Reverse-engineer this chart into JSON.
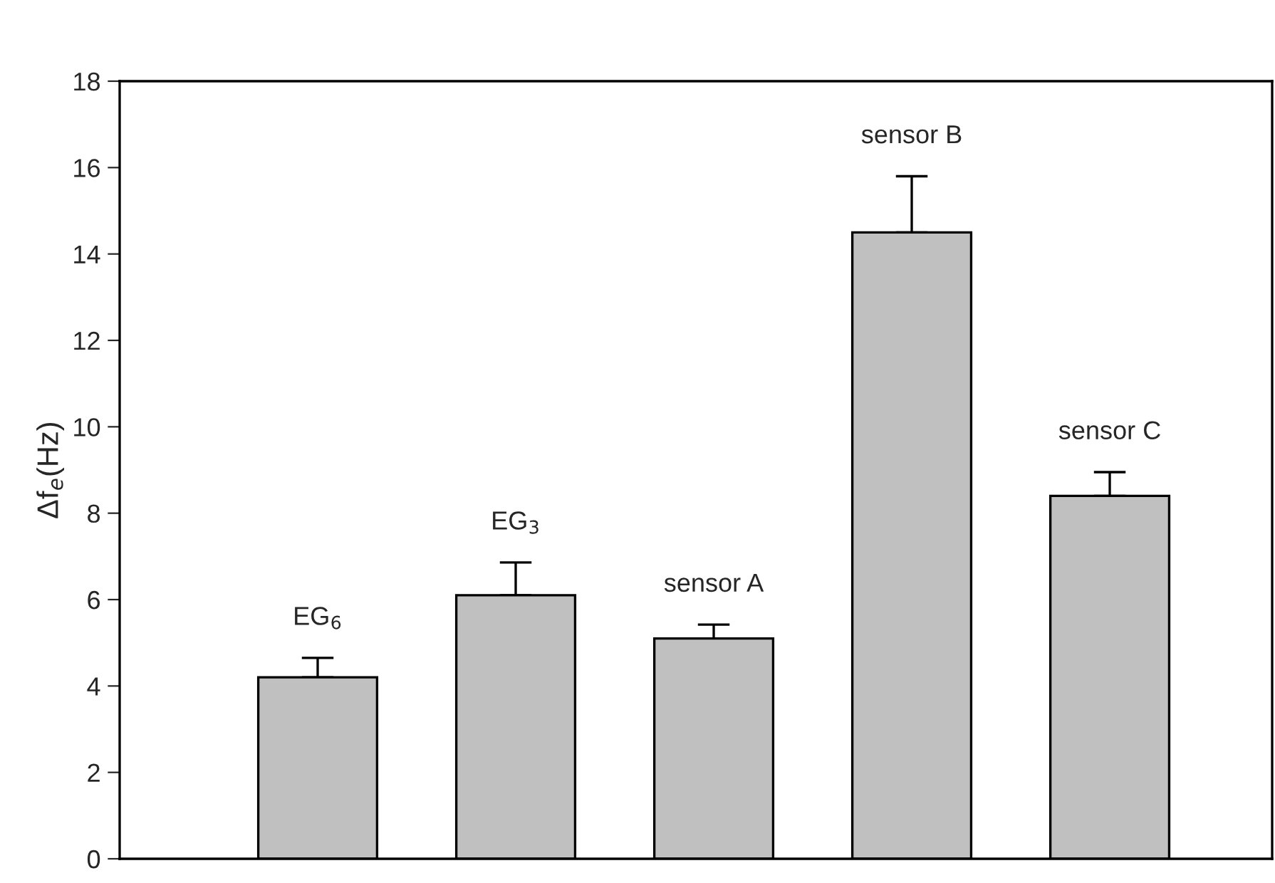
{
  "chart_data": {
    "type": "bar",
    "ylabel": "Δf$_{e}$(Hz)",
    "categories": [
      "EG$_{6}$",
      "EG$_{3}$",
      "sensor A",
      "sensor B",
      "sensor C"
    ],
    "values": [
      4.2,
      6.1,
      5.1,
      14.5,
      8.4
    ],
    "errors": [
      [
        4.2,
        4.65
      ],
      [
        6.1,
        6.86
      ],
      [
        5.1,
        5.42
      ],
      [
        14.5,
        15.8
      ],
      [
        8.4,
        8.95
      ]
    ],
    "color": "#c0c0c0",
    "ylim": [
      0,
      18
    ],
    "yticks": [
      0,
      2,
      4,
      6,
      8,
      10,
      12,
      14,
      16,
      18
    ],
    "grid": false
  }
}
